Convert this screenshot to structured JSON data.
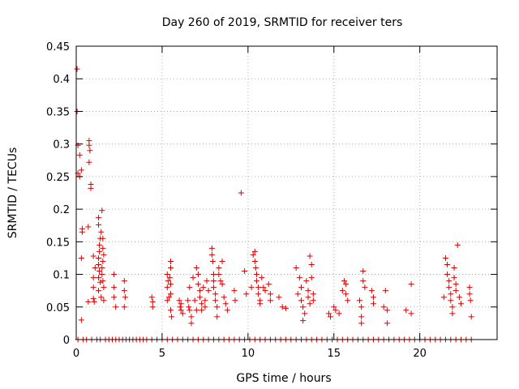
{
  "chart_data": {
    "type": "scatter",
    "title": "Day 260 of 2019, SRMTID for receiver ters",
    "xlabel": "GPS time / hours",
    "ylabel": "SRMTID / TECUs",
    "xlim": [
      0,
      24.5
    ],
    "ylim": [
      0,
      0.45
    ],
    "xticks": [
      0,
      5,
      10,
      15,
      20
    ],
    "yticks": [
      0,
      0.05,
      0.1,
      0.15,
      0.2,
      0.25,
      0.3,
      0.35,
      0.4,
      0.45
    ],
    "xtick_labels": [
      "0",
      "5",
      "10",
      "15",
      "20"
    ],
    "ytick_labels": [
      "0",
      "0.05",
      "0.1",
      "0.15",
      "0.2",
      "0.25",
      "0.3",
      "0.35",
      "0.4",
      "0.45"
    ],
    "grid": true,
    "marker": "plus",
    "series": [
      {
        "color": "#dd0000",
        "points": [
          [
            0.05,
            0.415
          ],
          [
            0.05,
            0.35
          ],
          [
            0.1,
            0.298
          ],
          [
            0.1,
            0.255
          ],
          [
            0.2,
            0.283
          ],
          [
            0.2,
            0.25
          ],
          [
            0.3,
            0.26
          ],
          [
            0.35,
            0.17
          ],
          [
            0.35,
            0.165
          ],
          [
            0.3,
            0.125
          ],
          [
            0.3,
            0.03
          ],
          [
            0.75,
            0.305
          ],
          [
            0.75,
            0.298
          ],
          [
            0.8,
            0.29
          ],
          [
            0.75,
            0.272
          ],
          [
            0.85,
            0.238
          ],
          [
            0.85,
            0.232
          ],
          [
            0.7,
            0.173
          ],
          [
            0.7,
            0.058
          ],
          [
            1.0,
            0.128
          ],
          [
            1.1,
            0.11
          ],
          [
            1.0,
            0.095
          ],
          [
            1.0,
            0.08
          ],
          [
            1.0,
            0.063
          ],
          [
            1.05,
            0.058
          ],
          [
            1.3,
            0.187
          ],
          [
            1.3,
            0.176
          ],
          [
            1.5,
            0.198
          ],
          [
            1.45,
            0.165
          ],
          [
            1.4,
            0.155
          ],
          [
            1.35,
            0.145
          ],
          [
            1.35,
            0.135
          ],
          [
            1.3,
            0.125
          ],
          [
            1.3,
            0.115
          ],
          [
            1.35,
            0.105
          ],
          [
            1.3,
            0.095
          ],
          [
            1.4,
            0.088
          ],
          [
            1.3,
            0.075
          ],
          [
            1.45,
            0.065
          ],
          [
            1.55,
            0.155
          ],
          [
            1.55,
            0.14
          ],
          [
            1.6,
            0.13
          ],
          [
            1.55,
            0.12
          ],
          [
            1.5,
            0.11
          ],
          [
            1.5,
            0.1
          ],
          [
            1.55,
            0.09
          ],
          [
            1.6,
            0.08
          ],
          [
            1.6,
            0.06
          ],
          [
            2.2,
            0.1
          ],
          [
            2.2,
            0.08
          ],
          [
            2.2,
            0.065
          ],
          [
            2.3,
            0.05
          ],
          [
            2.8,
            0.09
          ],
          [
            2.8,
            0.075
          ],
          [
            2.85,
            0.065
          ],
          [
            2.8,
            0.05
          ],
          [
            4.4,
            0.065
          ],
          [
            4.45,
            0.058
          ],
          [
            4.45,
            0.05
          ],
          [
            5.3,
            0.1
          ],
          [
            5.35,
            0.09
          ],
          [
            5.3,
            0.08
          ],
          [
            5.4,
            0.065
          ],
          [
            5.3,
            0.06
          ],
          [
            5.5,
            0.12
          ],
          [
            5.5,
            0.11
          ],
          [
            5.45,
            0.095
          ],
          [
            5.5,
            0.085
          ],
          [
            5.5,
            0.07
          ],
          [
            5.5,
            0.045
          ],
          [
            5.55,
            0.035
          ],
          [
            6.0,
            0.06
          ],
          [
            6.1,
            0.055
          ],
          [
            6.05,
            0.05
          ],
          [
            6.1,
            0.045
          ],
          [
            6.2,
            0.04
          ],
          [
            6.5,
            0.06
          ],
          [
            6.55,
            0.05
          ],
          [
            6.6,
            0.045
          ],
          [
            6.7,
            0.035
          ],
          [
            6.7,
            0.025
          ],
          [
            6.6,
            0.08
          ],
          [
            6.8,
            0.095
          ],
          [
            6.9,
            0.06
          ],
          [
            7.0,
            0.045
          ],
          [
            7.0,
            0.11
          ],
          [
            7.1,
            0.1
          ],
          [
            7.1,
            0.085
          ],
          [
            7.2,
            0.075
          ],
          [
            7.2,
            0.065
          ],
          [
            7.3,
            0.055
          ],
          [
            7.3,
            0.045
          ],
          [
            7.4,
            0.08
          ],
          [
            7.5,
            0.06
          ],
          [
            7.5,
            0.05
          ],
          [
            7.6,
            0.09
          ],
          [
            7.7,
            0.075
          ],
          [
            7.9,
            0.14
          ],
          [
            7.9,
            0.13
          ],
          [
            7.95,
            0.12
          ],
          [
            8.0,
            0.1
          ],
          [
            8.0,
            0.09
          ],
          [
            8.0,
            0.08
          ],
          [
            8.1,
            0.07
          ],
          [
            8.1,
            0.06
          ],
          [
            8.2,
            0.05
          ],
          [
            8.2,
            0.035
          ],
          [
            8.3,
            0.11
          ],
          [
            8.3,
            0.1
          ],
          [
            8.4,
            0.09
          ],
          [
            8.5,
            0.12
          ],
          [
            8.5,
            0.085
          ],
          [
            8.6,
            0.065
          ],
          [
            8.7,
            0.055
          ],
          [
            8.8,
            0.045
          ],
          [
            9.2,
            0.075
          ],
          [
            9.25,
            0.06
          ],
          [
            9.6,
            0.225
          ],
          [
            9.8,
            0.105
          ],
          [
            9.9,
            0.07
          ],
          [
            10.2,
            0.08
          ],
          [
            10.3,
            0.13
          ],
          [
            10.4,
            0.135
          ],
          [
            10.4,
            0.12
          ],
          [
            10.45,
            0.11
          ],
          [
            10.5,
            0.1
          ],
          [
            10.5,
            0.09
          ],
          [
            10.6,
            0.08
          ],
          [
            10.6,
            0.07
          ],
          [
            10.7,
            0.06
          ],
          [
            10.7,
            0.055
          ],
          [
            10.8,
            0.095
          ],
          [
            10.9,
            0.08
          ],
          [
            11.0,
            0.075
          ],
          [
            11.2,
            0.085
          ],
          [
            11.3,
            0.07
          ],
          [
            11.3,
            0.06
          ],
          [
            11.8,
            0.065
          ],
          [
            12.0,
            0.05
          ],
          [
            12.2,
            0.048
          ],
          [
            12.8,
            0.11
          ],
          [
            12.9,
            0.07
          ],
          [
            13.0,
            0.095
          ],
          [
            13.1,
            0.08
          ],
          [
            13.1,
            0.06
          ],
          [
            13.2,
            0.05
          ],
          [
            13.3,
            0.04
          ],
          [
            13.4,
            0.09
          ],
          [
            13.5,
            0.075
          ],
          [
            13.5,
            0.065
          ],
          [
            13.6,
            0.055
          ],
          [
            13.6,
            0.128
          ],
          [
            13.7,
            0.115
          ],
          [
            13.7,
            0.095
          ],
          [
            13.8,
            0.07
          ],
          [
            13.8,
            0.06
          ],
          [
            13.2,
            0.029
          ],
          [
            14.7,
            0.04
          ],
          [
            14.8,
            0.035
          ],
          [
            15.0,
            0.05
          ],
          [
            15.1,
            0.045
          ],
          [
            15.3,
            0.04
          ],
          [
            15.5,
            0.075
          ],
          [
            15.6,
            0.09
          ],
          [
            15.7,
            0.085
          ],
          [
            15.7,
            0.07
          ],
          [
            15.8,
            0.06
          ],
          [
            16.5,
            0.06
          ],
          [
            16.6,
            0.05
          ],
          [
            16.7,
            0.105
          ],
          [
            16.7,
            0.09
          ],
          [
            16.8,
            0.08
          ],
          [
            16.6,
            0.035
          ],
          [
            16.6,
            0.025
          ],
          [
            17.2,
            0.075
          ],
          [
            17.3,
            0.065
          ],
          [
            17.3,
            0.055
          ],
          [
            17.9,
            0.05
          ],
          [
            18.0,
            0.075
          ],
          [
            18.1,
            0.045
          ],
          [
            18.1,
            0.025
          ],
          [
            19.2,
            0.045
          ],
          [
            19.5,
            0.085
          ],
          [
            19.5,
            0.04
          ],
          [
            21.4,
            0.065
          ],
          [
            21.5,
            0.125
          ],
          [
            21.6,
            0.115
          ],
          [
            21.6,
            0.1
          ],
          [
            21.7,
            0.09
          ],
          [
            21.7,
            0.08
          ],
          [
            21.8,
            0.07
          ],
          [
            21.8,
            0.06
          ],
          [
            21.9,
            0.05
          ],
          [
            21.9,
            0.04
          ],
          [
            22.0,
            0.11
          ],
          [
            22.0,
            0.095
          ],
          [
            22.1,
            0.085
          ],
          [
            22.1,
            0.075
          ],
          [
            22.2,
            0.145
          ],
          [
            22.3,
            0.065
          ],
          [
            22.4,
            0.055
          ],
          [
            22.9,
            0.08
          ],
          [
            22.9,
            0.07
          ],
          [
            22.95,
            0.06
          ],
          [
            23.0,
            0.035
          ],
          [
            0.1,
            0.0
          ],
          [
            0.4,
            0.0
          ],
          [
            0.6,
            0.0
          ],
          [
            0.9,
            0.0
          ],
          [
            1.2,
            0.0
          ],
          [
            1.4,
            0.0
          ],
          [
            1.7,
            0.0
          ],
          [
            1.9,
            0.0
          ],
          [
            2.1,
            0.0
          ],
          [
            2.3,
            0.0
          ],
          [
            2.5,
            0.0
          ],
          [
            2.7,
            0.0
          ],
          [
            2.9,
            0.0
          ],
          [
            3.1,
            0.0
          ],
          [
            3.3,
            0.0
          ],
          [
            3.5,
            0.0
          ],
          [
            3.7,
            0.0
          ],
          [
            3.9,
            0.0
          ],
          [
            4.1,
            0.0
          ],
          [
            4.4,
            0.0
          ],
          [
            4.7,
            0.0
          ],
          [
            5.0,
            0.0
          ],
          [
            5.3,
            0.0
          ],
          [
            5.6,
            0.0
          ],
          [
            5.9,
            0.0
          ],
          [
            6.2,
            0.0
          ],
          [
            6.5,
            0.0
          ],
          [
            6.8,
            0.0
          ],
          [
            7.1,
            0.0
          ],
          [
            7.4,
            0.0
          ],
          [
            7.7,
            0.0
          ],
          [
            8.0,
            0.0
          ],
          [
            8.3,
            0.0
          ],
          [
            8.6,
            0.0
          ],
          [
            8.9,
            0.0
          ],
          [
            9.2,
            0.0
          ],
          [
            9.5,
            0.0
          ],
          [
            9.8,
            0.0
          ],
          [
            10.1,
            0.0
          ],
          [
            10.4,
            0.0
          ],
          [
            10.7,
            0.0
          ],
          [
            11.0,
            0.0
          ],
          [
            11.3,
            0.0
          ],
          [
            11.6,
            0.0
          ],
          [
            11.9,
            0.0
          ],
          [
            12.2,
            0.0
          ],
          [
            12.5,
            0.0
          ],
          [
            12.8,
            0.0
          ],
          [
            13.1,
            0.0
          ],
          [
            13.4,
            0.0
          ],
          [
            13.7,
            0.0
          ],
          [
            14.0,
            0.0
          ],
          [
            14.3,
            0.0
          ],
          [
            14.6,
            0.0
          ],
          [
            14.9,
            0.0
          ],
          [
            15.2,
            0.0
          ],
          [
            15.5,
            0.0
          ],
          [
            15.8,
            0.0
          ],
          [
            16.1,
            0.0
          ],
          [
            16.4,
            0.0
          ],
          [
            16.7,
            0.0
          ],
          [
            17.0,
            0.0
          ],
          [
            17.3,
            0.0
          ],
          [
            17.6,
            0.0
          ],
          [
            17.9,
            0.0
          ],
          [
            18.2,
            0.0
          ],
          [
            18.5,
            0.0
          ],
          [
            18.8,
            0.0
          ],
          [
            19.1,
            0.0
          ],
          [
            19.4,
            0.0
          ],
          [
            19.7,
            0.0
          ],
          [
            20.0,
            0.0
          ],
          [
            20.3,
            0.0
          ],
          [
            20.6,
            0.0
          ],
          [
            20.9,
            0.0
          ],
          [
            21.2,
            0.0
          ],
          [
            21.5,
            0.0
          ],
          [
            21.8,
            0.0
          ],
          [
            22.1,
            0.0
          ],
          [
            22.4,
            0.0
          ],
          [
            22.7,
            0.0
          ],
          [
            23.0,
            0.0
          ]
        ]
      }
    ]
  }
}
